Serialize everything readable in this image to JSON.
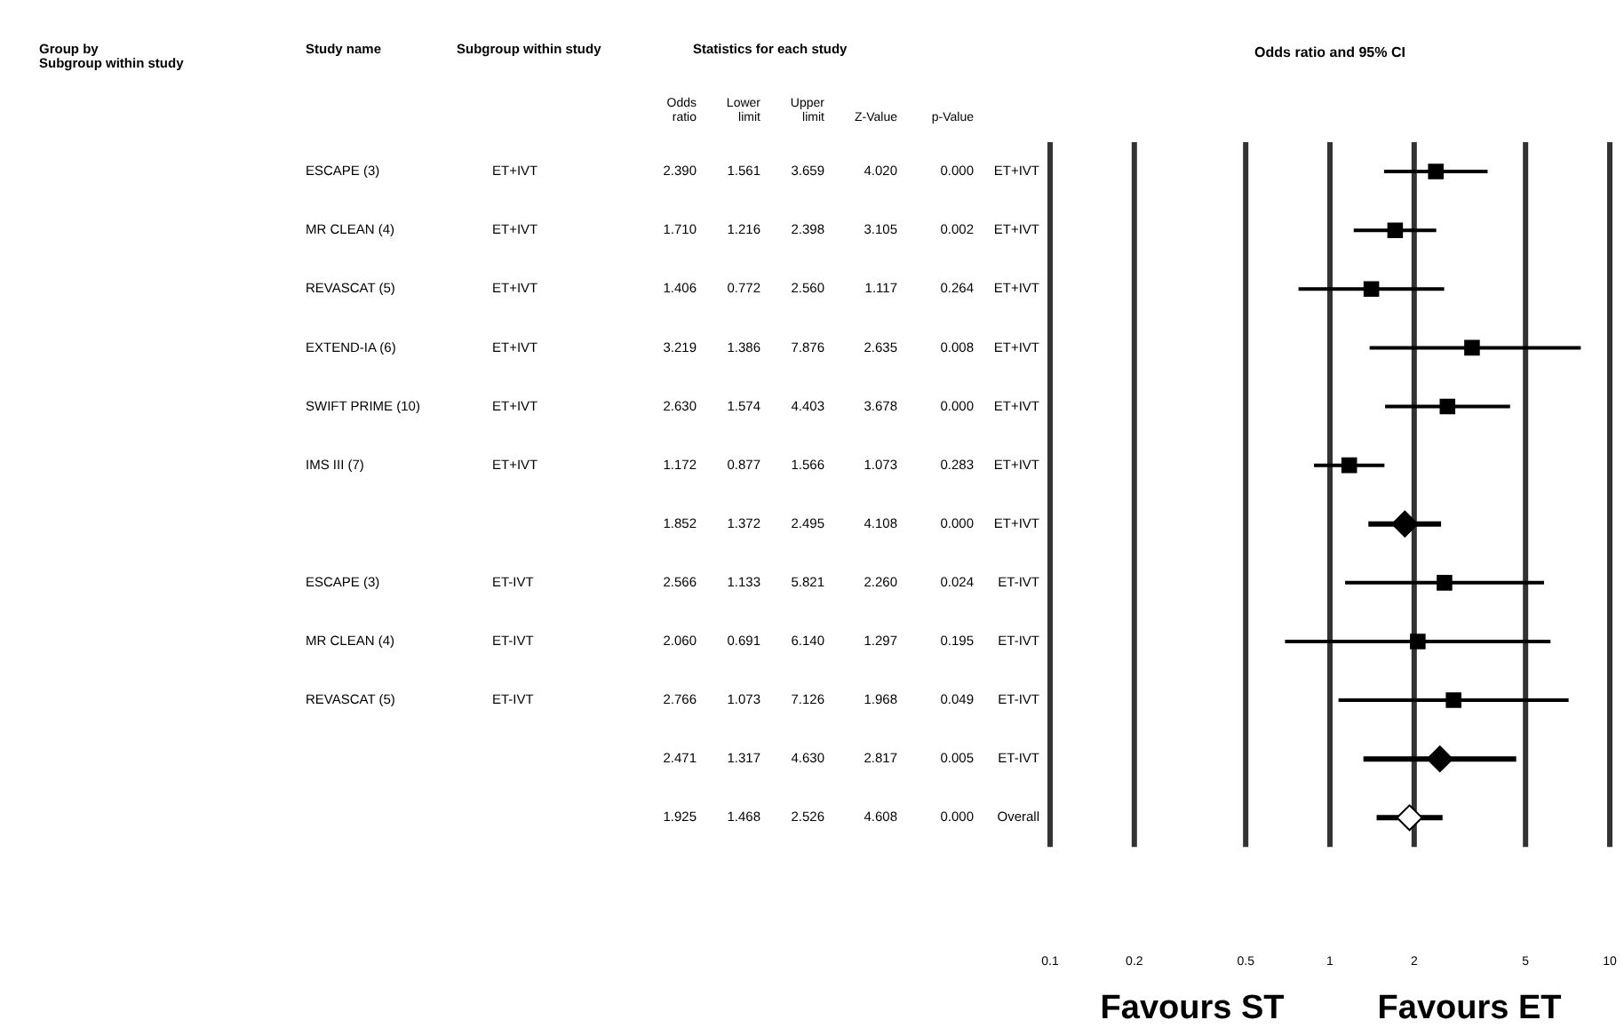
{
  "chart_data": {
    "type": "scatter",
    "title": "Odds ratio and 95% CI",
    "categories": [
      "ET+IVT",
      "ET+IVT",
      "ET+IVT",
      "ET+IVT",
      "ET+IVT",
      "ET+IVT",
      "ET+IVT",
      "ET-IVT",
      "ET-IVT",
      "ET-IVT",
      "ET-IVT",
      "Overall"
    ],
    "orientation": "horizontal",
    "log": "x",
    "xlim": [
      0.1,
      10
    ],
    "xticks": [
      0.1,
      0.2,
      0.5,
      1,
      2,
      5,
      10
    ],
    "grid": "x",
    "legend": false,
    "series": [
      {
        "color": "#000000",
        "marker": "square",
        "values": [
          2.39,
          1.71,
          1.406,
          3.219,
          2.63,
          1.172,
          null,
          2.566,
          2.06,
          2.766,
          null,
          null
        ],
        "errors": [
          [
            1.561,
            3.659
          ],
          [
            1.216,
            2.398
          ],
          [
            0.772,
            2.56
          ],
          [
            1.386,
            7.876
          ],
          [
            1.574,
            4.403
          ],
          [
            0.877,
            1.566
          ],
          null,
          [
            1.133,
            5.821
          ],
          [
            0.691,
            6.14
          ],
          [
            1.073,
            7.126
          ],
          null,
          null
        ]
      },
      {
        "color": "#000000",
        "marker": "diamond",
        "values": [
          null,
          null,
          null,
          null,
          null,
          null,
          1.852,
          null,
          null,
          null,
          2.471,
          null
        ],
        "errors": [
          null,
          null,
          null,
          null,
          null,
          null,
          [
            1.372,
            2.495
          ],
          null,
          null,
          null,
          [
            1.317,
            4.63
          ],
          null
        ]
      },
      {
        "color": "#ffffff",
        "marker": "diamond",
        "values": [
          null,
          null,
          null,
          null,
          null,
          null,
          null,
          null,
          null,
          null,
          null,
          1.925
        ],
        "errors": [
          null,
          null,
          null,
          null,
          null,
          null,
          null,
          null,
          null,
          null,
          null,
          [
            1.468,
            2.526
          ]
        ]
      }
    ],
    "annotations": [
      "Group by",
      "Subgroup within study",
      "Study name",
      "Subgroup within study",
      "Statistics for each study",
      "Odds ratio",
      "Lower limit",
      "Upper limit",
      "Z-Value",
      "p-Value",
      "Favours ST",
      "Favours ET",
      "ESCAPE (3)",
      "ET+IVT",
      "2.390",
      "1.561",
      "3.659",
      "4.020",
      "0.000",
      "MR CLEAN (4)",
      "ET+IVT",
      "1.710",
      "1.216",
      "2.398",
      "3.105",
      "0.002",
      "REVASCAT (5)",
      "ET+IVT",
      "1.406",
      "0.772",
      "2.560",
      "1.117",
      "0.264",
      "EXTEND-IA (6)",
      "ET+IVT",
      "3.219",
      "1.386",
      "7.876",
      "2.635",
      "0.008",
      "SWIFT PRIME (10)",
      "ET+IVT",
      "2.630",
      "1.574",
      "4.403",
      "3.678",
      "0.000",
      "IMS III (7)",
      "ET+IVT",
      "1.172",
      "0.877",
      "1.566",
      "1.073",
      "0.283",
      "1.852",
      "1.372",
      "2.495",
      "4.108",
      "0.000",
      "ESCAPE (3)",
      "ET-IVT",
      "2.566",
      "1.133",
      "5.821",
      "2.260",
      "0.024",
      "MR CLEAN (4)",
      "ET-IVT",
      "2.060",
      "0.691",
      "6.140",
      "1.297",
      "0.195",
      "REVASCAT (5)",
      "ET-IVT",
      "2.766",
      "1.073",
      "7.126",
      "1.968",
      "0.049",
      "2.471",
      "1.317",
      "4.630",
      "2.817",
      "0.005",
      "1.925",
      "1.468",
      "2.526",
      "4.608",
      "0.000"
    ]
  }
}
